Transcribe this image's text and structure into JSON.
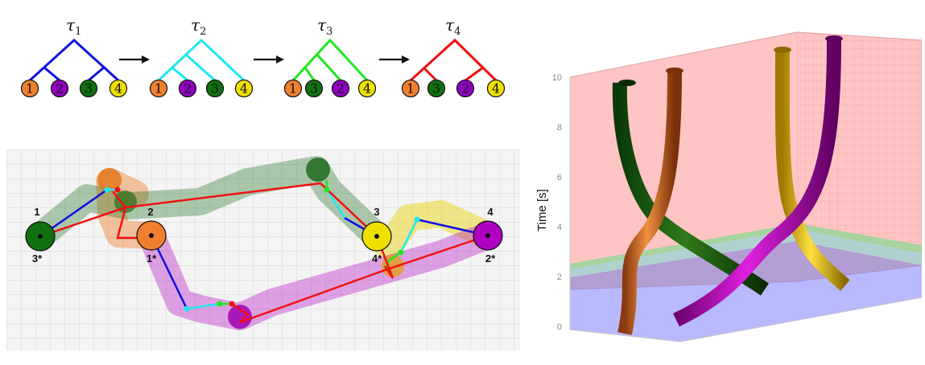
{
  "trees": [
    {
      "tau": "τ",
      "sub": "1",
      "color": "#1010e0",
      "leaves": [
        "1",
        "2",
        "3",
        "4"
      ]
    },
    {
      "tau": "τ",
      "sub": "2",
      "color": "#20e8f0",
      "leaves": [
        "1",
        "2",
        "3",
        "4"
      ]
    },
    {
      "tau": "τ",
      "sub": "3",
      "color": "#20e820",
      "leaves": [
        "1",
        "3",
        "2",
        "4"
      ]
    },
    {
      "tau": "τ",
      "sub": "4",
      "color": "#f01010",
      "leaves": [
        "1",
        "3",
        "2",
        "4"
      ]
    }
  ],
  "leaf_colors": {
    "1": "#f08030",
    "2": "#9000c0",
    "3": "#107010",
    "4": "#f0e000"
  },
  "plan_labels": {
    "top": {
      "n1": "1",
      "n2": "2",
      "n3": "3",
      "n4": "4"
    },
    "bottom": {
      "n1": "3*",
      "n2": "1*",
      "n3": "4*",
      "n4": "2*"
    }
  },
  "axis3d": {
    "ylabel": "Time [s]",
    "ticks": [
      "0",
      "2",
      "4",
      "6",
      "8",
      "10"
    ]
  },
  "colors": {
    "tau1": "#1010e0",
    "tau2": "#20e8f0",
    "tau3": "#20e820",
    "tau4": "#f01010",
    "grid": "#d8d8d8",
    "plan_bg": "#f4f4f4"
  }
}
